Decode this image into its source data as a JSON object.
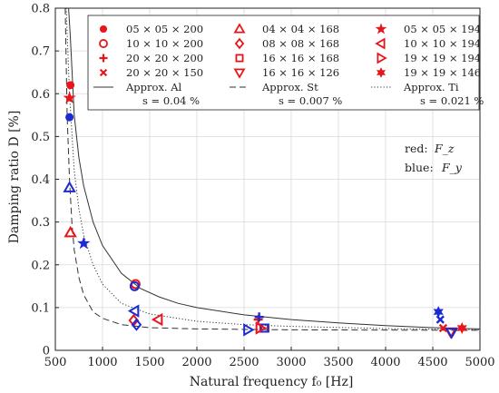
{
  "chart_data": {
    "type": "scatter",
    "xlabel": "Natural frequency f₀ [Hz]",
    "ylabel": "Damping ratio D [%]",
    "xlim": [
      500,
      5000
    ],
    "ylim": [
      0,
      0.8
    ],
    "xticks": [
      "500",
      "1000",
      "1500",
      "2000",
      "2500",
      "3000",
      "3500",
      "4000",
      "4500",
      "5000"
    ],
    "yticks": [
      "0",
      "0.1",
      "0.2",
      "0.3",
      "0.4",
      "0.5",
      "0.6",
      "0.7",
      "0.8"
    ],
    "grid": true,
    "colors": {
      "red": "#e8161b",
      "blue": "#1c2ad3",
      "curve": "#333333"
    },
    "annotations": [
      {
        "label": "red:",
        "value": "F_z"
      },
      {
        "label": "blue:",
        "value": "F_y"
      }
    ],
    "legend": {
      "placement": "top",
      "columns": [
        [
          {
            "label": "05 × 05 × 200",
            "marker": "circle-filled"
          },
          {
            "label": "10 × 10 × 200",
            "marker": "circle-open"
          },
          {
            "label": "20 × 20 × 200",
            "marker": "plus"
          },
          {
            "label": "20 × 20 × 150",
            "marker": "x"
          },
          {
            "label": "Approx. Al",
            "label2": "s = 0.04 %",
            "marker": "line-solid"
          }
        ],
        [
          {
            "label": "04 × 04 × 168",
            "marker": "triangle-up"
          },
          {
            "label": "08 × 08 × 168",
            "marker": "diamond"
          },
          {
            "label": "16 × 16 × 168",
            "marker": "square"
          },
          {
            "label": "16 × 16 × 126",
            "marker": "triangle-down"
          },
          {
            "label": "Approx. St",
            "label2": "s = 0.007 %",
            "marker": "line-dashed"
          }
        ],
        [
          {
            "label": "05 × 05 × 194",
            "marker": "star5"
          },
          {
            "label": "10 × 10 × 194",
            "marker": "triangle-left"
          },
          {
            "label": "19 × 19 × 194",
            "marker": "triangle-right"
          },
          {
            "label": "19 × 19 × 146",
            "marker": "star6"
          },
          {
            "label": "Approx. Ti",
            "label2": "s = 0.021 %",
            "marker": "line-dotted"
          }
        ]
      ]
    },
    "series": [
      {
        "marker": "circle-filled",
        "color": "red",
        "points": [
          [
            660,
            0.62
          ]
        ]
      },
      {
        "marker": "circle-filled",
        "color": "blue",
        "points": [
          [
            650,
            0.545
          ]
        ]
      },
      {
        "marker": "circle-open",
        "color": "red",
        "points": [
          [
            1350,
            0.155
          ]
        ]
      },
      {
        "marker": "circle-open",
        "color": "blue",
        "points": [
          [
            1340,
            0.15
          ]
        ]
      },
      {
        "marker": "plus",
        "color": "red",
        "points": [
          [
            2650,
            0.072
          ]
        ]
      },
      {
        "marker": "plus",
        "color": "blue",
        "points": [
          [
            2660,
            0.078
          ]
        ]
      },
      {
        "marker": "x",
        "color": "red",
        "points": [
          [
            4610,
            0.052
          ]
        ]
      },
      {
        "marker": "x",
        "color": "blue",
        "points": [
          [
            4580,
            0.072
          ]
        ]
      },
      {
        "marker": "triangle-up",
        "color": "red",
        "points": [
          [
            660,
            0.275
          ]
        ]
      },
      {
        "marker": "triangle-up",
        "color": "blue",
        "points": [
          [
            650,
            0.38
          ]
        ]
      },
      {
        "marker": "diamond",
        "color": "red",
        "points": [
          [
            1330,
            0.07
          ]
        ]
      },
      {
        "marker": "diamond",
        "color": "blue",
        "points": [
          [
            1360,
            0.06
          ]
        ]
      },
      {
        "marker": "square",
        "color": "red",
        "points": [
          [
            2710,
            0.052
          ]
        ]
      },
      {
        "marker": "square",
        "color": "blue",
        "points": [
          [
            2720,
            0.052
          ]
        ]
      },
      {
        "marker": "triangle-down",
        "color": "red",
        "points": [
          [
            4690,
            0.043
          ]
        ]
      },
      {
        "marker": "triangle-down",
        "color": "blue",
        "points": [
          [
            4700,
            0.042
          ]
        ]
      },
      {
        "marker": "star5",
        "color": "red",
        "points": [
          [
            650,
            0.59
          ]
        ]
      },
      {
        "marker": "star5",
        "color": "blue",
        "points": [
          [
            800,
            0.25
          ]
        ]
      },
      {
        "marker": "triangle-left",
        "color": "red",
        "points": [
          [
            1590,
            0.072
          ]
        ]
      },
      {
        "marker": "triangle-left",
        "color": "blue",
        "points": [
          [
            1340,
            0.092
          ]
        ]
      },
      {
        "marker": "triangle-right",
        "color": "red",
        "points": [
          [
            2670,
            0.052
          ]
        ]
      },
      {
        "marker": "triangle-right",
        "color": "blue",
        "points": [
          [
            2540,
            0.048
          ]
        ]
      },
      {
        "marker": "star6",
        "color": "red",
        "points": [
          [
            4810,
            0.052
          ]
        ]
      },
      {
        "marker": "star6",
        "color": "blue",
        "points": [
          [
            4560,
            0.09
          ]
        ]
      }
    ],
    "curves": [
      {
        "name": "Approx. Al",
        "style": "solid",
        "points": [
          [
            640,
            0.8
          ],
          [
            660,
            0.73
          ],
          [
            700,
            0.55
          ],
          [
            750,
            0.45
          ],
          [
            800,
            0.385
          ],
          [
            900,
            0.3
          ],
          [
            1000,
            0.245
          ],
          [
            1200,
            0.18
          ],
          [
            1400,
            0.145
          ],
          [
            1600,
            0.125
          ],
          [
            1800,
            0.11
          ],
          [
            2000,
            0.1
          ],
          [
            2500,
            0.083
          ],
          [
            3000,
            0.072
          ],
          [
            3500,
            0.064
          ],
          [
            4000,
            0.058
          ],
          [
            4500,
            0.053
          ],
          [
            5000,
            0.05
          ]
        ]
      },
      {
        "name": "Approx. St",
        "style": "dashed",
        "points": [
          [
            605,
            0.8
          ],
          [
            625,
            0.55
          ],
          [
            650,
            0.4
          ],
          [
            675,
            0.3
          ],
          [
            700,
            0.235
          ],
          [
            750,
            0.17
          ],
          [
            800,
            0.13
          ],
          [
            900,
            0.09
          ],
          [
            1000,
            0.075
          ],
          [
            1200,
            0.06
          ],
          [
            1500,
            0.053
          ],
          [
            2000,
            0.05
          ],
          [
            3000,
            0.048
          ],
          [
            5000,
            0.047
          ]
        ]
      },
      {
        "name": "Approx. Ti",
        "style": "dotted",
        "points": [
          [
            615,
            0.8
          ],
          [
            650,
            0.6
          ],
          [
            700,
            0.42
          ],
          [
            750,
            0.33
          ],
          [
            800,
            0.27
          ],
          [
            900,
            0.2
          ],
          [
            1000,
            0.155
          ],
          [
            1200,
            0.11
          ],
          [
            1500,
            0.085
          ],
          [
            2000,
            0.068
          ],
          [
            2500,
            0.06
          ],
          [
            3000,
            0.056
          ],
          [
            4000,
            0.051
          ],
          [
            5000,
            0.048
          ]
        ]
      }
    ]
  }
}
